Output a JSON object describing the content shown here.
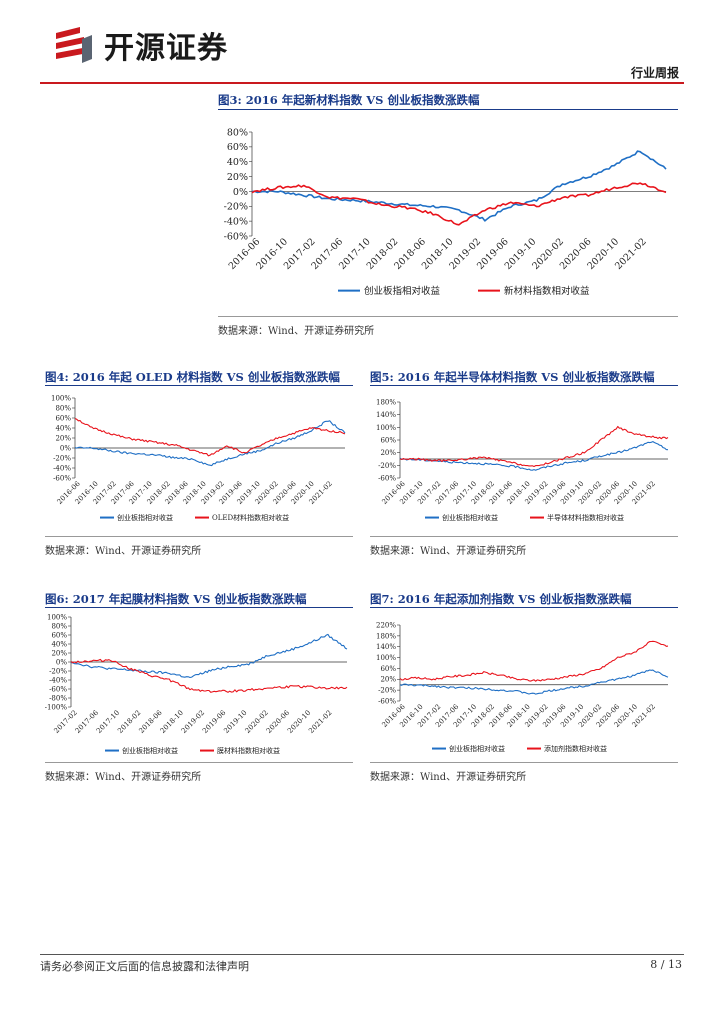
{
  "header": {
    "company": "开源证券",
    "section": "行业周报"
  },
  "brand_colors": {
    "accent_red": "#c9191e",
    "title_blue": "#1a3b8a",
    "series_blue": "#1f6fc5",
    "series_red": "#e8131b"
  },
  "figures": [
    {
      "title": "图3: 2016 年起新材料指数 VS 创业板指数涨跌幅",
      "source": "数据来源：Wind、开源证券研究所",
      "chart_data": {
        "type": "line",
        "y_ticks": [
          "80%",
          "60%",
          "40%",
          "20%",
          "0%",
          "-20%",
          "-40%",
          "-60%"
        ],
        "ylim": [
          -60,
          80
        ],
        "x_ticks": [
          "2016-06",
          "2016-10",
          "2017-02",
          "2017-06",
          "2017-10",
          "2018-02",
          "2018-06",
          "2018-10",
          "2019-02",
          "2019-06",
          "2019-10",
          "2020-02",
          "2020-06",
          "2020-10",
          "2021-02"
        ],
        "series": [
          {
            "name": "创业板指相对收益",
            "color": "#1f6fc5",
            "values": [
              0,
              0,
              -5,
              -10,
              -12,
              -15,
              -18,
              -20,
              -25,
              -38,
              -20,
              -12,
              10,
              20,
              35,
              55,
              30
            ]
          },
          {
            "name": "新材料指数相对收益",
            "color": "#e8131b",
            "values": [
              0,
              5,
              8,
              -8,
              -10,
              -18,
              -22,
              -30,
              -45,
              -25,
              -15,
              -20,
              -8,
              -5,
              5,
              12,
              0
            ]
          }
        ]
      }
    },
    {
      "title": "图4: 2016 年起 OLED 材料指数 VS 创业板指数涨跌幅",
      "source": "数据来源：Wind、开源证券研究所",
      "chart_data": {
        "type": "line",
        "y_ticks": [
          "100%",
          "80%",
          "60%",
          "40%",
          "20%",
          "0%",
          "-20%",
          "-40%",
          "-60%"
        ],
        "ylim": [
          -60,
          100
        ],
        "x_ticks": [
          "2016-06",
          "2016-10",
          "2017-02",
          "2017-06",
          "2017-10",
          "2018-02",
          "2018-06",
          "2018-10",
          "2019-02",
          "2019-06",
          "2019-10",
          "2020-02",
          "2020-06",
          "2020-10",
          "2021-02"
        ],
        "series": [
          {
            "name": "创业板指相对收益",
            "color": "#1f6fc5",
            "values": [
              0,
              0,
              -5,
              -10,
              -12,
              -15,
              -20,
              -22,
              -35,
              -22,
              -12,
              -5,
              10,
              20,
              35,
              55,
              30
            ]
          },
          {
            "name": "OLED材料指数相对收益",
            "color": "#e8131b",
            "values": [
              60,
              40,
              30,
              20,
              15,
              10,
              5,
              -5,
              -15,
              5,
              -10,
              5,
              20,
              30,
              40,
              35,
              30
            ]
          }
        ]
      }
    },
    {
      "title": "图5: 2016 年起半导体材料指数 VS 创业板指数涨跌幅",
      "source": "数据来源：Wind、开源证券研究所",
      "chart_data": {
        "type": "line",
        "y_ticks": [
          "180%",
          "140%",
          "100%",
          "60%",
          "20%",
          "-20%",
          "-60%"
        ],
        "ylim": [
          -60,
          180
        ],
        "x_ticks": [
          "2016-06",
          "2016-10",
          "2017-02",
          "2017-06",
          "2017-10",
          "2018-02",
          "2018-06",
          "2018-10",
          "2019-02",
          "2019-06",
          "2019-10",
          "2020-02",
          "2020-06",
          "2020-10",
          "2021-02"
        ],
        "series": [
          {
            "name": "创业板指相对收益",
            "color": "#1f6fc5",
            "values": [
              0,
              -2,
              -5,
              -10,
              -12,
              -15,
              -20,
              -25,
              -35,
              -22,
              -12,
              -5,
              10,
              20,
              35,
              55,
              30
            ]
          },
          {
            "name": "半导体材料指数相对收益",
            "color": "#e8131b",
            "values": [
              0,
              0,
              -5,
              -5,
              0,
              5,
              -5,
              -15,
              -25,
              -10,
              5,
              20,
              60,
              100,
              80,
              70,
              65
            ]
          }
        ]
      }
    },
    {
      "title": "图6: 2017 年起膜材料指数 VS 创业板指数涨跌幅",
      "source": "数据来源：Wind、开源证券研究所",
      "chart_data": {
        "type": "line",
        "y_ticks": [
          "100%",
          "80%",
          "60%",
          "40%",
          "20%",
          "0%",
          "-20%",
          "-40%",
          "-60%",
          "-80%",
          "-100%"
        ],
        "ylim": [
          -100,
          100
        ],
        "x_ticks": [
          "2017-02",
          "2017-06",
          "2017-10",
          "2018-02",
          "2018-06",
          "2018-10",
          "2019-02",
          "2019-06",
          "2019-10",
          "2020-02",
          "2020-06",
          "2020-10",
          "2021-02"
        ],
        "series": [
          {
            "name": "创业板指相对收益",
            "color": "#1f6fc5",
            "values": [
              0,
              -10,
              -15,
              -18,
              -22,
              -25,
              -35,
              -20,
              -10,
              -5,
              15,
              25,
              40,
              60,
              30
            ]
          },
          {
            "name": "膜材料指数相对收益",
            "color": "#e8131b",
            "values": [
              0,
              2,
              5,
              -15,
              -30,
              -40,
              -60,
              -65,
              -65,
              -62,
              -58,
              -55,
              -55,
              -58,
              -58
            ]
          }
        ]
      }
    },
    {
      "title": "图7: 2016 年起添加剂指数 VS 创业板指数涨跌幅",
      "source": "数据来源：Wind、开源证券研究所",
      "chart_data": {
        "type": "line",
        "y_ticks": [
          "220%",
          "180%",
          "140%",
          "100%",
          "60%",
          "20%",
          "-20%",
          "-60%"
        ],
        "ylim": [
          -60,
          220
        ],
        "x_ticks": [
          "2016-06",
          "2016-10",
          "2017-02",
          "2017-06",
          "2017-10",
          "2018-02",
          "2018-06",
          "2018-10",
          "2019-02",
          "2019-06",
          "2019-10",
          "2020-02",
          "2020-06",
          "2020-10",
          "2021-02"
        ],
        "series": [
          {
            "name": "创业板指相对收益",
            "color": "#1f6fc5",
            "values": [
              0,
              -2,
              -5,
              -10,
              -12,
              -15,
              -20,
              -25,
              -35,
              -22,
              -12,
              -5,
              10,
              20,
              35,
              55,
              30
            ]
          },
          {
            "name": "添加剂指数相对收益",
            "color": "#e8131b",
            "values": [
              20,
              25,
              20,
              30,
              35,
              45,
              35,
              20,
              15,
              20,
              30,
              40,
              60,
              100,
              120,
              160,
              140
            ]
          }
        ]
      }
    }
  ],
  "footer": {
    "note": "请务必参阅正文后面的信息披露和法律声明",
    "page": "8 / 13"
  }
}
